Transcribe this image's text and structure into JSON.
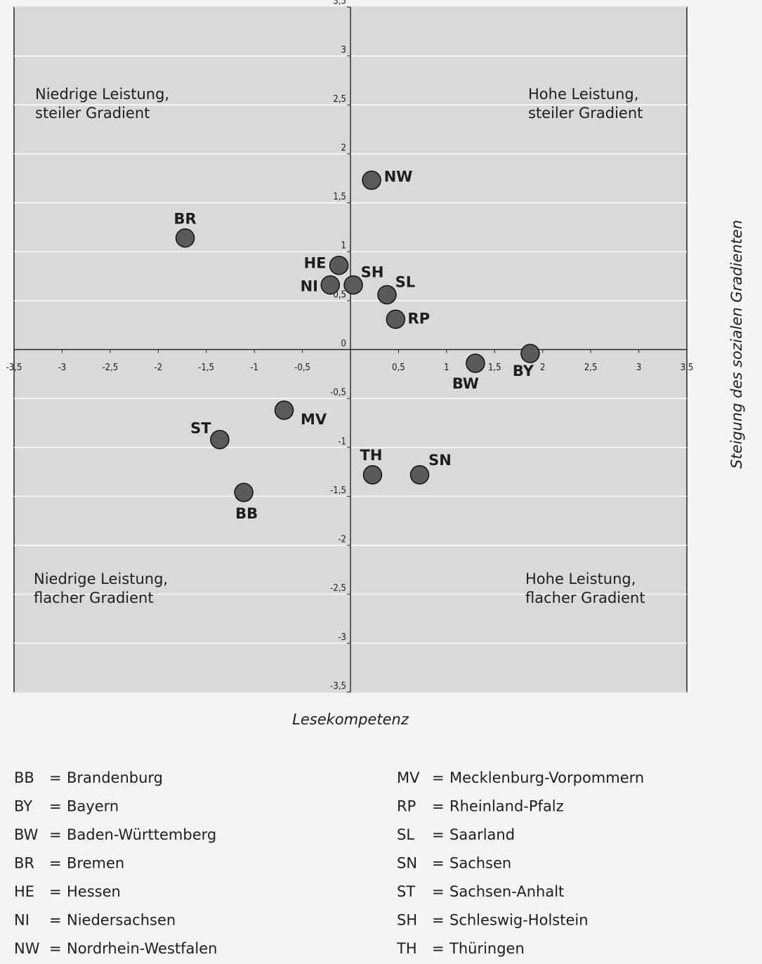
{
  "chart_data": {
    "type": "scatter",
    "x_label": "Lesekompetenz",
    "y_label": "Steigung des sozialen Gradienten",
    "quadrant_labels": [
      [
        "Niedrige Leistung,",
        "steiler Gradient"
      ],
      [
        "Hohe Leistung,",
        "steiler Gradient"
      ],
      [
        "Niedrige Leistung,",
        "flacher Gradient"
      ],
      [
        "Hohe Leistung,",
        "flacher Gradient"
      ]
    ],
    "labels": [
      "BR",
      "NW",
      "HE",
      "NI",
      "SH",
      "SL",
      "RP",
      "BW",
      "BY",
      "MV",
      "ST",
      "TH",
      "SN",
      "BB"
    ],
    "x": [
      -1.72,
      0.22,
      -0.12,
      -0.21,
      0.03,
      0.38,
      0.47,
      1.3,
      1.87,
      -0.69,
      -1.36,
      0.23,
      0.72,
      -1.11
    ],
    "values": [
      1.14,
      1.73,
      0.86,
      0.66,
      0.66,
      0.56,
      0.31,
      -0.14,
      -0.04,
      -0.62,
      -0.92,
      -1.28,
      -1.28,
      -1.46
    ],
    "color": "#5a5a5a",
    "xlim": [
      -3.5,
      3.5
    ],
    "ylim": [
      -3.5,
      3.5
    ],
    "xticks": [
      {
        "value": -3.5,
        "label": "-3,5"
      },
      -3,
      {
        "value": -2.5,
        "label": "-2,5"
      },
      -2,
      {
        "value": -1.5,
        "label": "-1,5"
      },
      -1,
      {
        "value": -0.5,
        "label": "-0,5"
      },
      {
        "value": 0.5,
        "label": "0,5"
      },
      1,
      {
        "value": 1.5,
        "label": "1,5"
      },
      2,
      {
        "value": 2.5,
        "label": "2,5"
      },
      3,
      {
        "value": 3.5,
        "label": "3,5"
      }
    ],
    "yticks": [
      {
        "value": 3.5,
        "label": "3,5"
      },
      3,
      {
        "value": 2.5,
        "label": "2,5"
      },
      2,
      {
        "value": 1.5,
        "label": "1,5"
      },
      1,
      {
        "value": 0.5,
        "label": "0,5"
      },
      0,
      {
        "value": -0.5,
        "label": "-0,5"
      },
      -1,
      {
        "value": -1.5,
        "label": "-1,5"
      },
      -2,
      {
        "value": -2.5,
        "label": "-2,5"
      },
      -3,
      {
        "value": -3.5,
        "label": "-3,5"
      }
    ],
    "grid": true,
    "legend_separator": "=",
    "legend_entries": [
      {
        "abbr": "BB",
        "name": "Brandenburg"
      },
      {
        "abbr": "BY",
        "name": "Bayern"
      },
      {
        "abbr": "BW",
        "name": "Baden-Württemberg"
      },
      {
        "abbr": "BR",
        "name": "Bremen"
      },
      {
        "abbr": "HE",
        "name": "Hessen"
      },
      {
        "abbr": "NI",
        "name": "Niedersachsen"
      },
      {
        "abbr": "NW",
        "name": "Nordrhein-Westfalen"
      },
      {
        "abbr": "MV",
        "name": "Mecklenburg-Vorpommern"
      },
      {
        "abbr": "RP",
        "name": "Rheinland-Pfalz"
      },
      {
        "abbr": "SL",
        "name": "Saarland"
      },
      {
        "abbr": "SN",
        "name": "Sachsen"
      },
      {
        "abbr": "ST",
        "name": "Sachsen-Anhalt"
      },
      {
        "abbr": "SH",
        "name": "Schleswig-Holstein"
      },
      {
        "abbr": "TH",
        "name": "Thüringen"
      }
    ]
  }
}
